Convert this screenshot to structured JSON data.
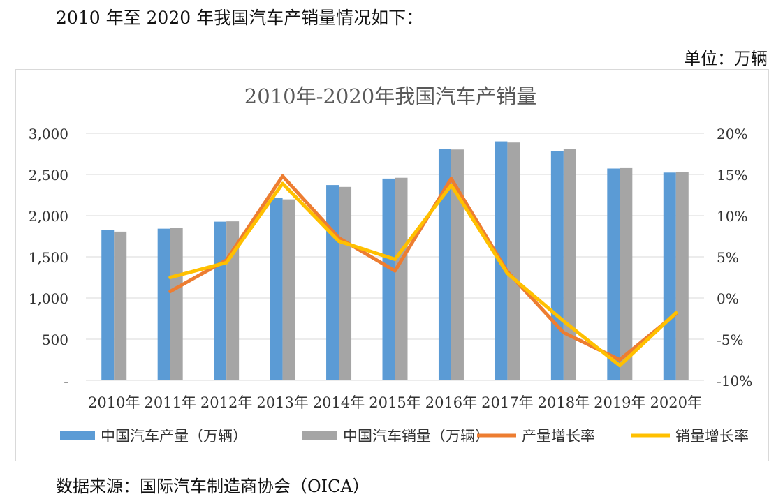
{
  "intro_text": "2010 年至 2020 年我国汽车产销量情况如下：",
  "unit_text": "单位：万辆",
  "source_text": "数据来源：国际汽车制造商协会（OICA）",
  "chart_data": {
    "type": "bar",
    "title": "2010年-2020年我国汽车产销量",
    "categories": [
      "2010年",
      "2011年",
      "2012年",
      "2013年",
      "2014年",
      "2015年",
      "2016年",
      "2017年",
      "2018年",
      "2019年",
      "2020年"
    ],
    "y_left": {
      "lim": [
        0,
        3000
      ],
      "ticks": [
        0,
        500,
        1000,
        1500,
        2000,
        2500,
        3000
      ],
      "tick_labels": [
        "-",
        "500",
        "1,000",
        "1,500",
        "2,000",
        "2,500",
        "3,000"
      ]
    },
    "y_right": {
      "lim": [
        -10,
        20
      ],
      "ticks": [
        -10,
        -5,
        0,
        5,
        10,
        15,
        20
      ],
      "tick_labels": [
        "-10%",
        "-5%",
        "0%",
        "5%",
        "10%",
        "15%",
        "20%"
      ]
    },
    "series": [
      {
        "name": "中国汽车产量（万辆）",
        "kind": "bar",
        "axis": "left",
        "color": "#5b9bd5",
        "values": [
          1826,
          1842,
          1927,
          2212,
          2372,
          2450,
          2812,
          2902,
          2781,
          2572,
          2523
        ]
      },
      {
        "name": "中国汽车销量（万辆）",
        "kind": "bar",
        "axis": "left",
        "color": "#a5a5a5",
        "values": [
          1806,
          1851,
          1931,
          2198,
          2349,
          2460,
          2803,
          2888,
          2808,
          2577,
          2531
        ]
      },
      {
        "name": "产量增长率",
        "kind": "line",
        "axis": "right",
        "color": "#ed7d31",
        "values": [
          null,
          0.8,
          4.6,
          14.8,
          7.3,
          3.3,
          14.5,
          3.2,
          -4.2,
          -7.5,
          -1.9
        ]
      },
      {
        "name": "销量增长率",
        "kind": "line",
        "axis": "right",
        "color": "#ffc000",
        "values": [
          null,
          2.5,
          4.3,
          13.9,
          6.9,
          4.7,
          13.7,
          3.0,
          -2.8,
          -8.2,
          -1.8
        ]
      }
    ]
  }
}
